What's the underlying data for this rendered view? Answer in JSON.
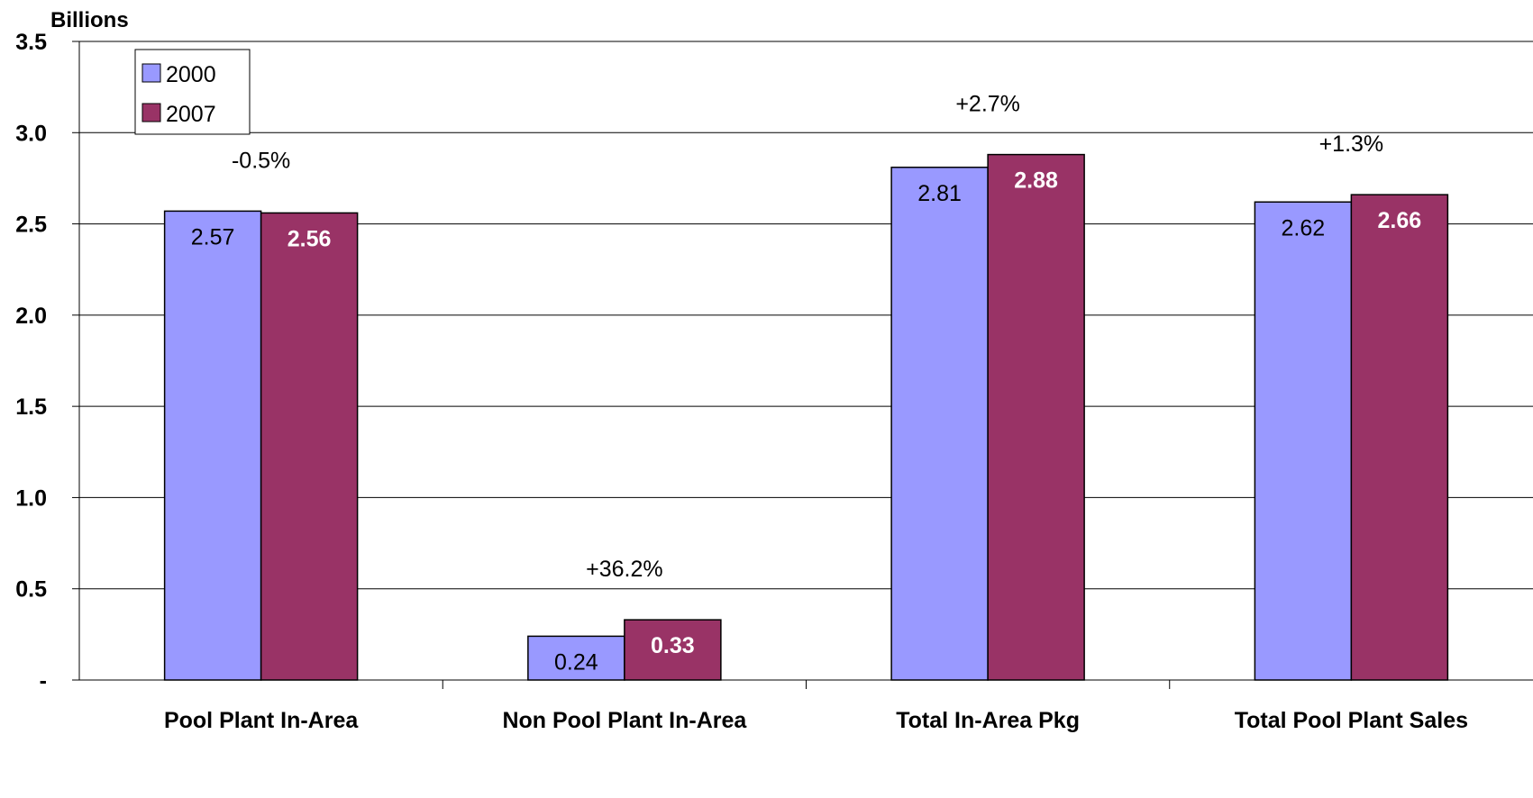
{
  "chart_data": {
    "type": "bar",
    "unit_label": "Billions",
    "categories": [
      "Pool Plant In-Area",
      "Non Pool Plant In-Area",
      "Total In-Area Pkg",
      "Total Pool Plant Sales"
    ],
    "series": [
      {
        "name": "2000",
        "values": [
          2.57,
          0.24,
          2.81,
          2.62
        ],
        "labels": [
          "2.57",
          "0.24",
          "2.81",
          "2.62"
        ],
        "color": "#9999FF",
        "label_color": "#000000",
        "label_bold": false
      },
      {
        "name": "2007",
        "values": [
          2.56,
          0.33,
          2.88,
          2.66
        ],
        "labels": [
          "2.56",
          "0.33",
          "2.88",
          "2.66"
        ],
        "color": "#993366",
        "label_color": "#FFFFFF",
        "label_bold": true
      }
    ],
    "annotations": [
      "-0.5%",
      "+36.2%",
      "+2.7%",
      "+1.3%"
    ],
    "y_ticks": [
      {
        "value": 0,
        "label": "-"
      },
      {
        "value": 0.5,
        "label": "0.5"
      },
      {
        "value": 1.0,
        "label": "1.0"
      },
      {
        "value": 1.5,
        "label": "1.5"
      },
      {
        "value": 2.0,
        "label": "2.0"
      },
      {
        "value": 2.5,
        "label": "2.5"
      },
      {
        "value": 3.0,
        "label": "3.0"
      },
      {
        "value": 3.5,
        "label": "3.5"
      }
    ],
    "ylim": [
      0,
      3.5
    ],
    "grid": true,
    "legend_position": "top-left"
  }
}
